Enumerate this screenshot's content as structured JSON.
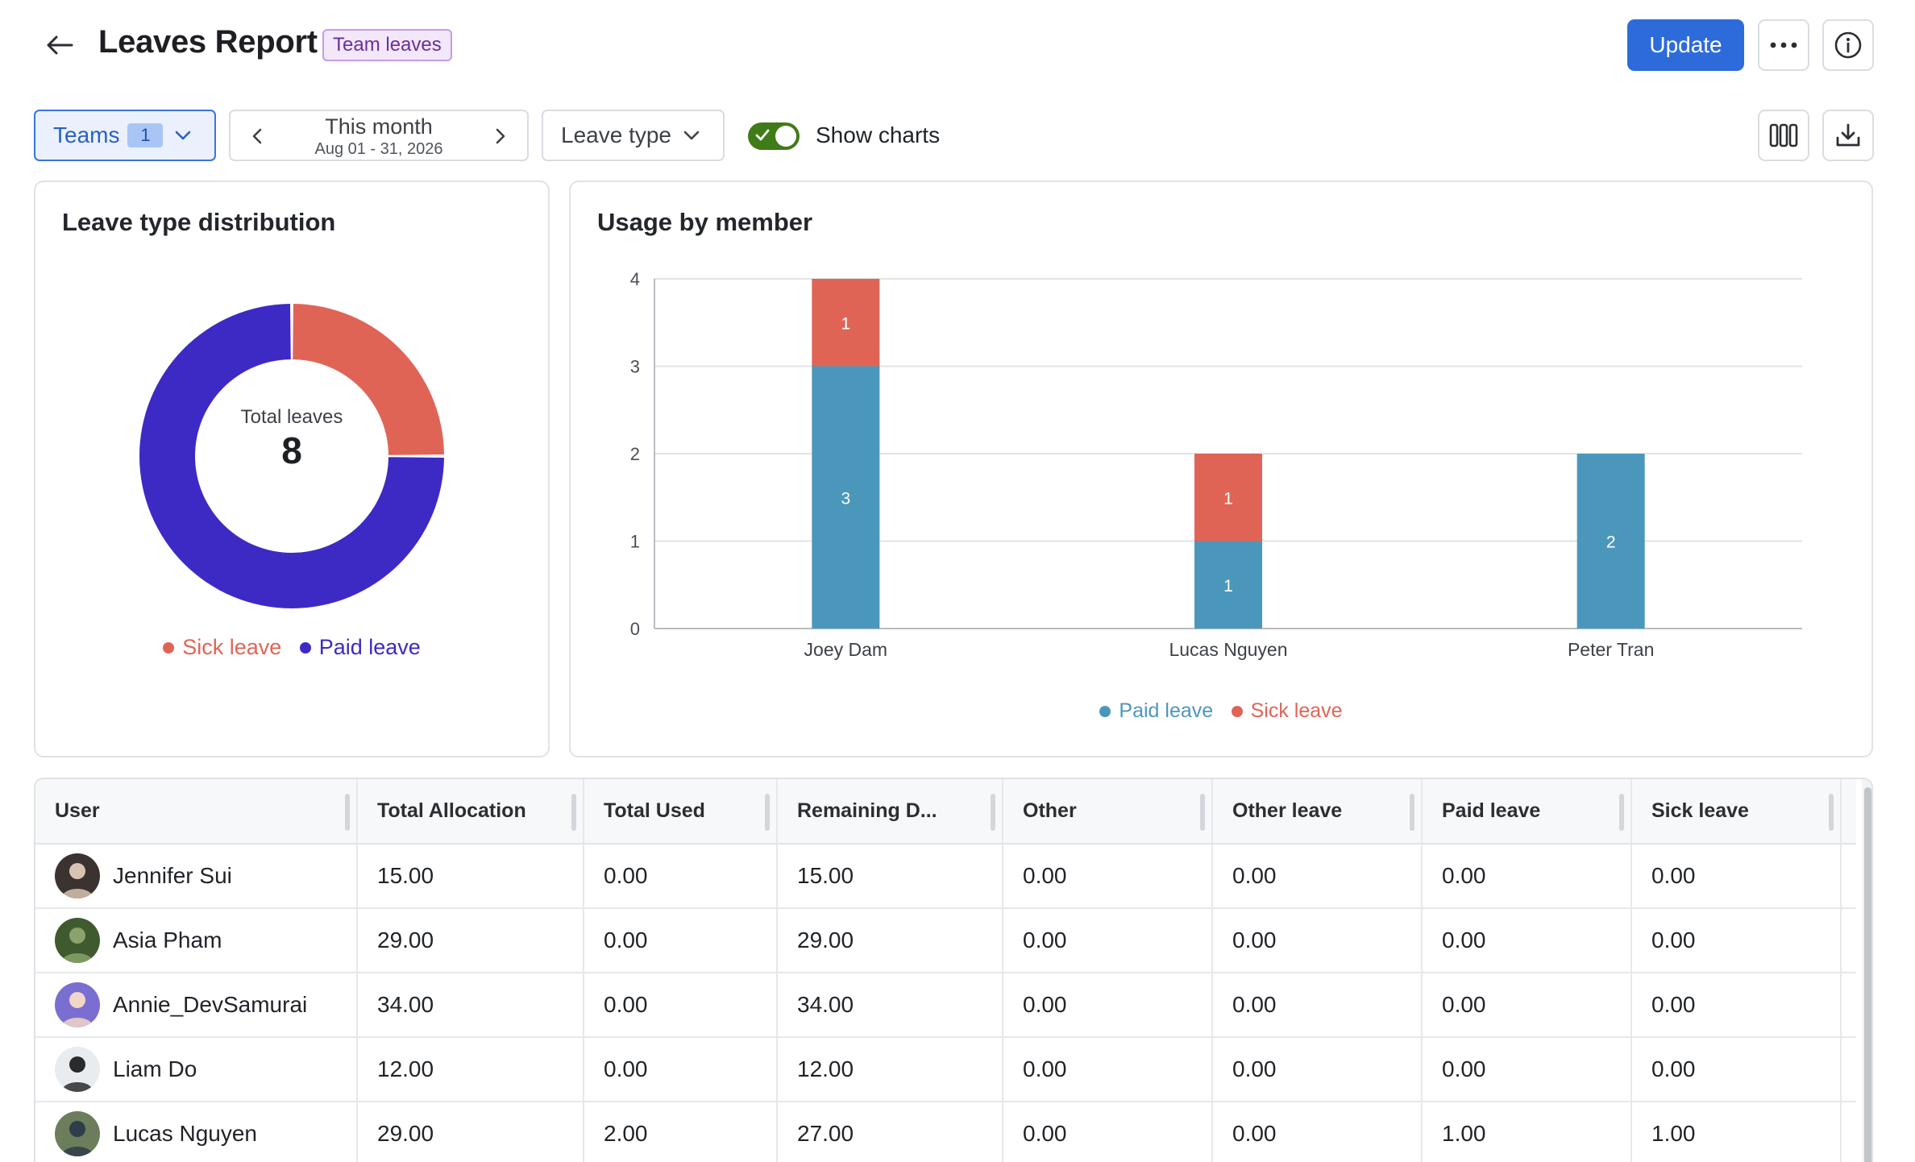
{
  "header": {
    "title": "Leaves Report",
    "tag": "Team leaves",
    "update_label": "Update"
  },
  "toolbar": {
    "teams_label": "Teams",
    "teams_count": "1",
    "date_title": "This month",
    "date_range": "Aug 01 - 31, 2026",
    "leave_type_label": "Leave type",
    "show_charts_label": "Show charts",
    "show_charts_on": true
  },
  "colors": {
    "sick_leave": "#e06456",
    "paid_leave_donut": "#3d2ac5",
    "paid_leave_bar": "#4b97bc",
    "accent": "#2d6bdb"
  },
  "donut": {
    "title": "Leave type distribution",
    "center_label": "Total leaves",
    "center_value": "8",
    "legend": [
      "Sick leave",
      "Paid leave"
    ]
  },
  "bars": {
    "title": "Usage by member",
    "legend": [
      "Paid leave",
      "Sick leave"
    ]
  },
  "chart_data": [
    {
      "type": "pie",
      "title": "Leave type distribution",
      "labels": [
        "Sick leave",
        "Paid leave"
      ],
      "values": [
        2,
        6
      ],
      "colors": [
        "#e06456",
        "#3d2ac5"
      ],
      "center_label": "Total leaves",
      "center_value": 8,
      "legend_position": "bottom"
    },
    {
      "type": "bar",
      "stacked": true,
      "title": "Usage by member",
      "categories": [
        "Joey Dam",
        "Lucas Nguyen",
        "Peter Tran"
      ],
      "series": [
        {
          "name": "Paid leave",
          "values": [
            3,
            1,
            2
          ],
          "color": "#4b97bc"
        },
        {
          "name": "Sick leave",
          "values": [
            1,
            1,
            0
          ],
          "color": "#e06456"
        }
      ],
      "ylim": [
        0,
        4
      ],
      "yticks": [
        0,
        1,
        2,
        3,
        4
      ],
      "grid": true,
      "legend_position": "bottom"
    }
  ],
  "table": {
    "columns": [
      "User",
      "Total Allocation",
      "Total Used",
      "Remaining D...",
      "Other",
      "Other leave",
      "Paid leave",
      "Sick leave"
    ],
    "rows": [
      {
        "user": "Jennifer Sui",
        "cells": [
          "15.00",
          "0.00",
          "15.00",
          "0.00",
          "0.00",
          "0.00",
          "0.00"
        ]
      },
      {
        "user": "Asia Pham",
        "cells": [
          "29.00",
          "0.00",
          "29.00",
          "0.00",
          "0.00",
          "0.00",
          "0.00"
        ]
      },
      {
        "user": "Annie_DevSamurai",
        "cells": [
          "34.00",
          "0.00",
          "34.00",
          "0.00",
          "0.00",
          "0.00",
          "0.00"
        ]
      },
      {
        "user": "Liam Do",
        "cells": [
          "12.00",
          "0.00",
          "12.00",
          "0.00",
          "0.00",
          "0.00",
          "0.00"
        ]
      },
      {
        "user": "Lucas Nguyen",
        "cells": [
          "29.00",
          "2.00",
          "27.00",
          "0.00",
          "0.00",
          "1.00",
          "1.00"
        ]
      }
    ]
  }
}
